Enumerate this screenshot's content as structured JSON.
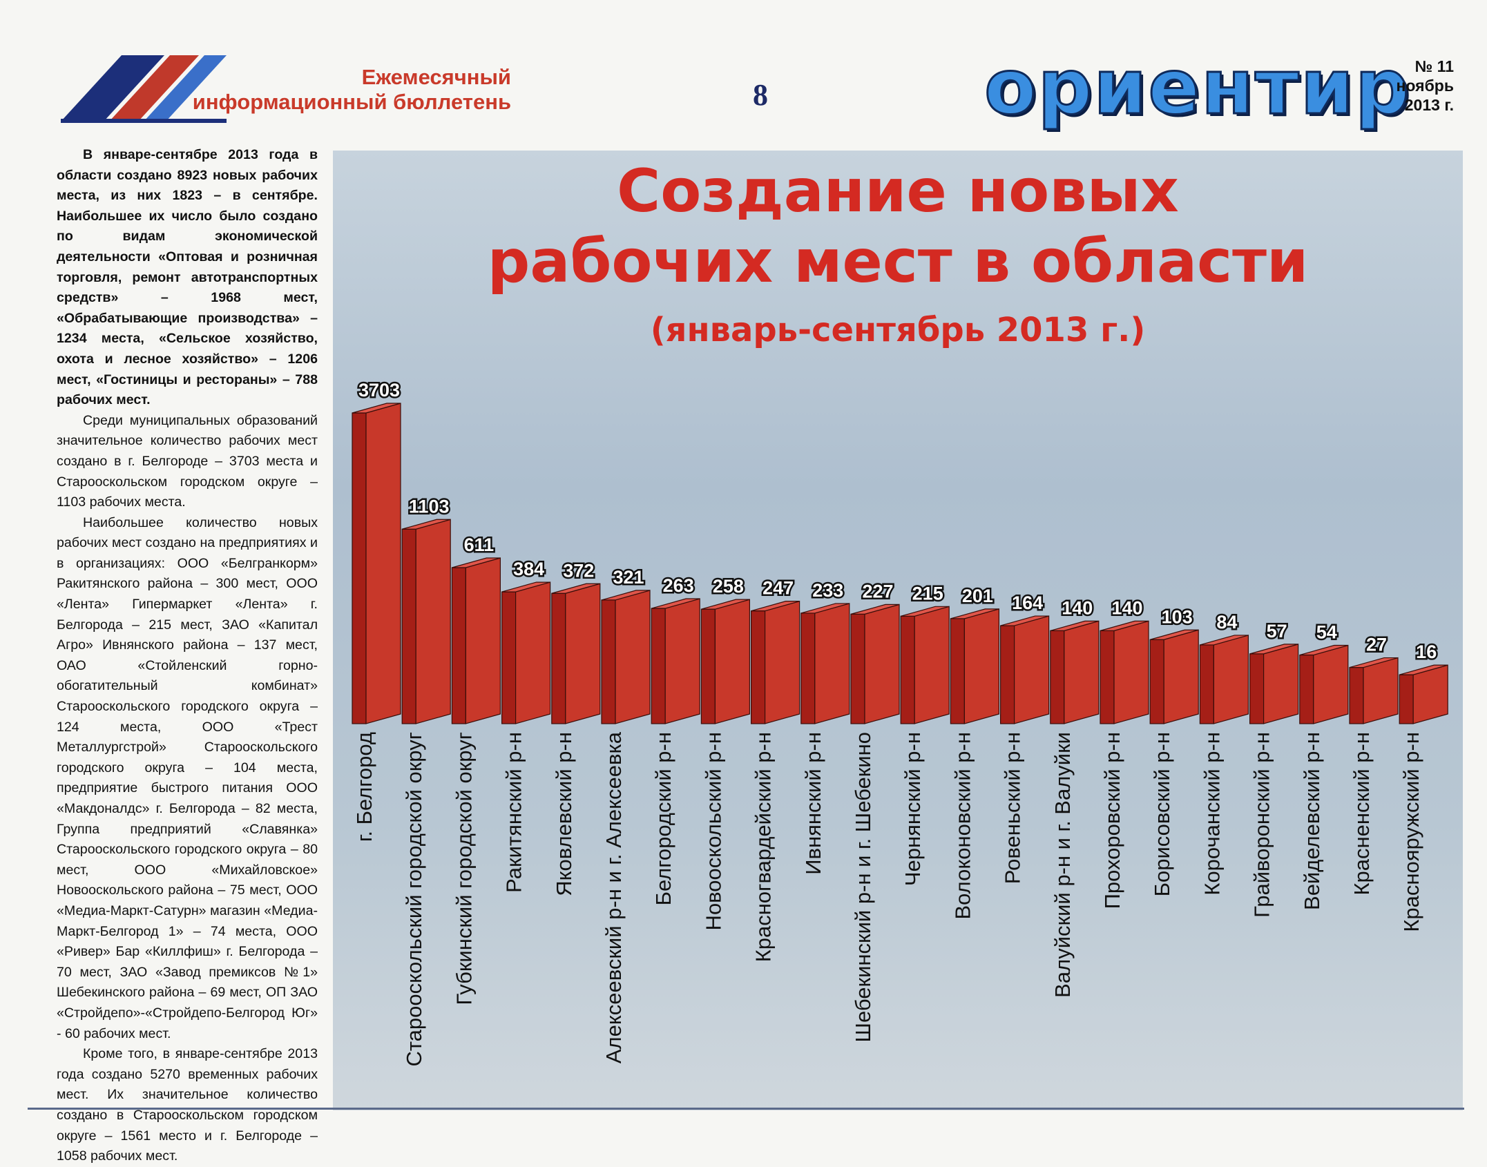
{
  "header": {
    "subtitle_line1": "Ежемесячный",
    "subtitle_line2": "информационный бюллетень",
    "page_number": "8",
    "brand": "ориентир",
    "issue_number": "№ 11",
    "issue_month": "ноябрь",
    "issue_year": "2013 г."
  },
  "article": {
    "paragraphs": [
      "В январе-сентябре 2013 года в области создано 8923 новых рабочих места, из них 1823 – в сентябре. Наибольшее их число было создано по видам экономической деятельности «Оптовая и розничная торговля, ремонт автотранспортных средств» – 1968 мест, «Обрабатывающие производства» – 1234 места, «Сельское хозяйство, охота и лесное хозяйство» – 1206 мест, «Гостиницы и рестораны» – 788 рабочих мест.",
      "Среди муниципальных образований значительное количество рабочих мест создано в г. Белгороде – 3703 места и Старооскольском городском округе – 1103 рабочих места.",
      "Наибольшее количество новых рабочих мест создано на предприятиях и в организациях: ООО «Белгранкорм» Ракитянского района – 300 мест, ООО «Лента» Гипермаркет «Лента» г. Белгорода – 215 мест, ЗАО «Капитал Агро» Ивнянского района – 137 мест, ОАО «Стойленский горно-обогатительный комбинат» Старооскольского городского округа – 124 места, ООО «Трест Металлургстрой» Старооскольского городского округа – 104 места, предприятие быстрого питания ООО «Макдоналдс» г. Белгорода – 82 места, Группа предприятий «Славянка» Старооскольского городского округа – 80 мест, ООО «Михайловское» Новооскольского района – 75 мест, ООО «Медиа-Маркт-Сатурн» магазин «Медиа-Маркт-Белгород 1» – 74 места, ООО «Ривер» Бар «Киллфиш» г. Белгорода – 70 мест, ЗАО «Завод премиксов №1» Шебекинского района – 69 мест, ОП ЗАО «Стройдепо»-«Стройдепо-Белгород Юг» - 60 рабочих мест.",
      "Кроме того, в январе-сентябре 2013 года создано 5270 временных рабочих мест. Их значительное количество создано в Старооскольском городском округе – 1561 место и г. Белгороде – 1058 рабочих мест."
    ]
  },
  "chart_data": {
    "type": "bar",
    "title_line1": "Создание новых",
    "title_line2": "рабочих мест в области",
    "title_line3": "(январь-сентябрь 2013 г.)",
    "bar_color": "#c8382a",
    "categories": [
      "г. Белгород",
      "Старооскольский городской округ",
      "Губкинский городской округ",
      "Ракитянский р-н",
      "Яковлевский р-н",
      "Алексеевский р-н и г. Алексеевка",
      "Белгородский р-н",
      "Новооскольский р-н",
      "Красногвардейский р-н",
      "Ивнянский р-н",
      "Шебекинский р-н и г. Шебекино",
      "Чернянский р-н",
      "Волоконовский р-н",
      "Ровеньский р-н",
      "Валуйский р-н и г. Валуйки",
      "Прохоровский р-н",
      "Борисовский р-н",
      "Корочанский р-н",
      "Грайворонский р-н",
      "Вейделевский р-н",
      "Красненский р-н",
      "Краснояружский р-н"
    ],
    "values": [
      3703,
      1103,
      611,
      384,
      372,
      321,
      263,
      258,
      247,
      233,
      227,
      215,
      201,
      164,
      140,
      140,
      103,
      84,
      57,
      54,
      27,
      16
    ],
    "value_labels": [
      "3703",
      "1103",
      "611",
      "384",
      "372",
      "321",
      "263",
      "258",
      "247",
      "233",
      "227",
      "215",
      "201",
      "164",
      "140",
      "140",
      "103",
      "84",
      "57",
      "54",
      "27",
      "16"
    ],
    "scale": "non-linear (bars not to scale)"
  }
}
